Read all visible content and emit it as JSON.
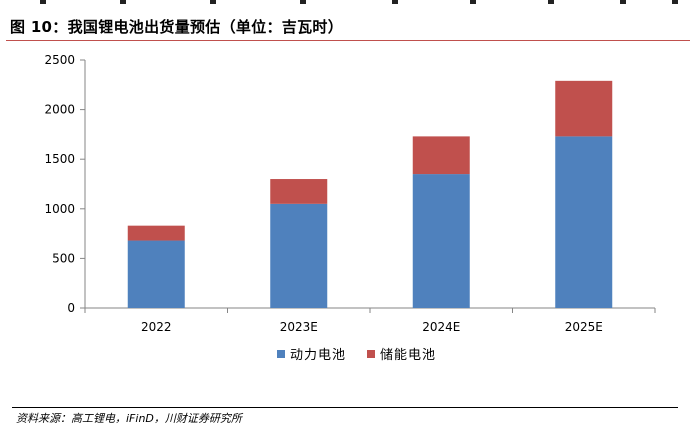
{
  "title": "图 10：我国锂电池出货量预估（单位：吉瓦时）",
  "source": "资料来源：高工锂电，iFinD，川财证券研究所",
  "chart_data": {
    "type": "bar",
    "stacked": true,
    "categories": [
      "2022",
      "2023E",
      "2024E",
      "2025E"
    ],
    "series": [
      {
        "name": "动力电池",
        "color": "#4f81bd",
        "values": [
          680,
          1050,
          1350,
          1730
        ]
      },
      {
        "name": "储能电池",
        "color": "#c0504d",
        "values": [
          150,
          250,
          380,
          560
        ]
      }
    ],
    "yticks": [
      "0",
      "500",
      "1000",
      "1500",
      "2000",
      "2500"
    ],
    "ylim": [
      0,
      2500
    ],
    "grid": false,
    "legend_position": "bottom"
  }
}
